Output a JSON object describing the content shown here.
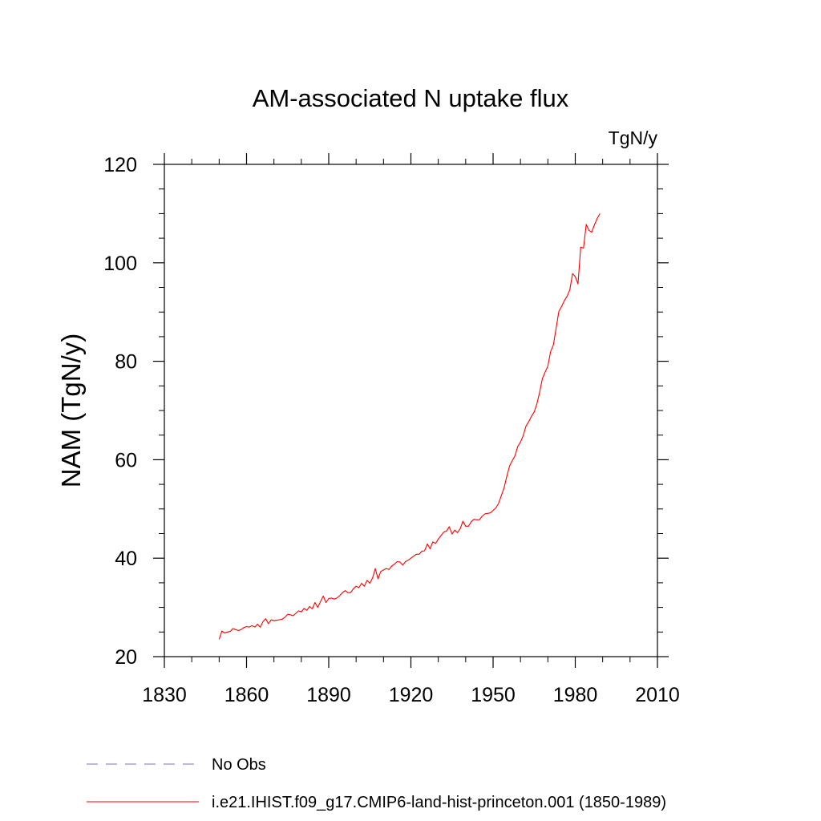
{
  "chart_data": {
    "type": "line",
    "title": "AM-associated N uptake flux",
    "units": "TgN/y",
    "ylabel": "NAM  (TgN/y)",
    "xlabel": "",
    "xlim": [
      1830,
      2010
    ],
    "ylim": [
      20,
      120
    ],
    "x_ticks": [
      1830,
      1860,
      1890,
      1920,
      1950,
      1980,
      2010
    ],
    "y_ticks": [
      20,
      40,
      60,
      80,
      100,
      120
    ],
    "x_ticks_text": [
      "1830",
      "1860",
      "1890",
      "1920",
      "1950",
      "1980",
      "2010"
    ],
    "y_ticks_text": [
      "20",
      "40",
      "60",
      "80",
      "100",
      "120"
    ],
    "grid": false,
    "legend_position": "bottom-left",
    "legend": [
      {
        "label": "No Obs",
        "color": "#7b73b5",
        "style": "dashed"
      },
      {
        "label": "i.e21.IHIST.f09_g17.CMIP6-land-hist-princeton.001 (1850-1989)",
        "color": "#ff0000",
        "style": "solid"
      }
    ],
    "series": [
      {
        "name": "i.e21.IHIST.f09_g17.CMIP6-land-hist-princeton.001 (1850-1989)",
        "color": "#ff0000",
        "x": [
          1850,
          1851,
          1852,
          1853,
          1854,
          1855,
          1856,
          1857,
          1858,
          1859,
          1860,
          1861,
          1862,
          1863,
          1864,
          1865,
          1866,
          1867,
          1868,
          1869,
          1870,
          1871,
          1872,
          1873,
          1874,
          1875,
          1876,
          1877,
          1878,
          1879,
          1880,
          1881,
          1882,
          1883,
          1884,
          1885,
          1886,
          1887,
          1888,
          1889,
          1890,
          1891,
          1892,
          1893,
          1894,
          1895,
          1896,
          1897,
          1898,
          1899,
          1900,
          1901,
          1902,
          1903,
          1904,
          1905,
          1906,
          1907,
          1908,
          1909,
          1910,
          1911,
          1912,
          1913,
          1914,
          1915,
          1916,
          1917,
          1918,
          1919,
          1920,
          1921,
          1922,
          1923,
          1924,
          1925,
          1926,
          1927,
          1928,
          1929,
          1930,
          1931,
          1932,
          1933,
          1934,
          1935,
          1936,
          1937,
          1938,
          1939,
          1940,
          1941,
          1942,
          1943,
          1944,
          1945,
          1946,
          1947,
          1948,
          1949,
          1950,
          1951,
          1952,
          1953,
          1954,
          1955,
          1956,
          1957,
          1958,
          1959,
          1960,
          1961,
          1962,
          1963,
          1964,
          1965,
          1966,
          1967,
          1968,
          1969,
          1970,
          1971,
          1972,
          1973,
          1974,
          1975,
          1976,
          1977,
          1978,
          1979,
          1980,
          1981,
          1982,
          1983,
          1984,
          1985,
          1986,
          1987,
          1988,
          1989
        ],
        "values": [
          23.5,
          25.2,
          24.8,
          25.0,
          25.1,
          25.7,
          25.5,
          25.3,
          25.5,
          25.9,
          26.1,
          26.0,
          26.3,
          26.0,
          26.6,
          26.0,
          27.1,
          27.7,
          26.7,
          27.5,
          27.3,
          27.4,
          27.5,
          27.6,
          28.0,
          28.6,
          28.5,
          28.3,
          28.8,
          29.3,
          29.1,
          29.8,
          29.4,
          30.2,
          29.7,
          31.0,
          30.0,
          31.2,
          32.3,
          31.0,
          31.8,
          31.9,
          31.7,
          31.9,
          32.4,
          33.0,
          33.4,
          33.0,
          33.0,
          33.8,
          34.3,
          34.0,
          34.9,
          34.3,
          35.5,
          34.9,
          36.0,
          37.9,
          35.8,
          37.3,
          37.6,
          37.9,
          37.7,
          38.4,
          38.8,
          39.3,
          39.2,
          38.6,
          39.3,
          39.6,
          40.0,
          40.4,
          40.8,
          40.8,
          41.4,
          41.5,
          42.9,
          41.9,
          43.3,
          43.0,
          43.9,
          44.6,
          45.3,
          45.5,
          46.4,
          44.9,
          45.7,
          45.2,
          46.0,
          47.5,
          46.5,
          46.5,
          47.4,
          47.9,
          47.8,
          47.8,
          48.5,
          49.0,
          49.1,
          49.2,
          49.7,
          50.2,
          51.1,
          52.7,
          54.3,
          56.6,
          58.7,
          59.8,
          60.8,
          62.7,
          63.6,
          64.9,
          66.8,
          67.7,
          68.8,
          69.7,
          71.4,
          73.7,
          76.5,
          77.8,
          79.0,
          82.0,
          83.3,
          86.7,
          90.1,
          91.1,
          92.3,
          93.2,
          94.5,
          97.8,
          97.2,
          95.7,
          103.2,
          103.0,
          107.8,
          106.6,
          106.2,
          107.7,
          109.0,
          110.0
        ]
      }
    ]
  }
}
